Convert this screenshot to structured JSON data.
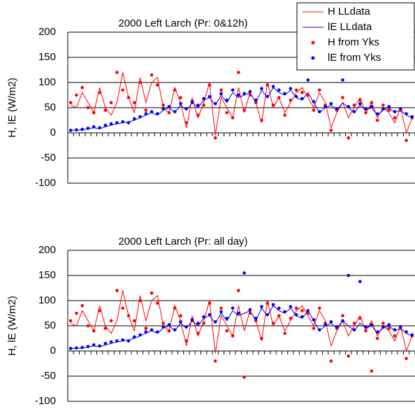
{
  "chart_data": [
    {
      "type": "line",
      "title": "2000 Left Larch    (Pr: 0&12h)",
      "ylabel": "H, lE    (W/m2)",
      "ylim": [
        -100,
        200
      ],
      "yticks": [
        -100,
        -50,
        0,
        50,
        100,
        150,
        200
      ],
      "grid": true,
      "legend": "upper right",
      "categories": [
        null,
        null,
        null,
        null,
        null,
        null,
        null,
        null,
        null,
        null,
        null,
        null,
        null,
        null,
        null,
        null,
        null,
        null,
        null,
        null,
        null,
        null,
        null,
        null,
        null,
        null,
        null,
        null,
        null,
        null,
        null,
        null,
        null,
        null,
        null,
        null,
        null,
        null,
        null,
        null,
        null,
        null,
        null,
        null,
        null,
        null,
        null,
        null,
        null,
        null,
        null,
        null,
        null,
        null,
        null,
        null,
        null,
        null,
        null,
        null
      ],
      "series": [
        {
          "name": "H LLdata",
          "color": "#ff0000",
          "mode": "line",
          "values": [
            55,
            50,
            80,
            60,
            40,
            90,
            50,
            35,
            60,
            120,
            70,
            40,
            110,
            60,
            100,
            110,
            50,
            40,
            90,
            60,
            10,
            70,
            30,
            60,
            100,
            -5,
            70,
            50,
            30,
            90,
            40,
            80,
            60,
            20,
            100,
            50,
            70,
            40,
            60,
            80,
            90,
            70,
            50,
            80,
            60,
            10,
            40,
            60,
            30,
            50,
            70,
            40,
            60,
            30,
            50,
            40,
            20,
            50,
            0,
            30
          ]
        },
        {
          "name": "lE LLdata",
          "color": "#0000cc",
          "mode": "line",
          "values": [
            5,
            5,
            6,
            8,
            10,
            8,
            12,
            15,
            18,
            20,
            22,
            25,
            30,
            35,
            40,
            35,
            45,
            50,
            40,
            55,
            45,
            60,
            50,
            65,
            70,
            55,
            75,
            60,
            80,
            70,
            75,
            80,
            60,
            85,
            70,
            90,
            80,
            75,
            85,
            70,
            65,
            80,
            60,
            40,
            50,
            55,
            45,
            60,
            50,
            40,
            55,
            45,
            50,
            35,
            45,
            50,
            40,
            45,
            35,
            30
          ]
        },
        {
          "name": "H from Yks",
          "color": "#ff0000",
          "mode": "markers",
          "values": [
            60,
            75,
            90,
            50,
            40,
            80,
            45,
            60,
            120,
            85,
            70,
            60,
            100,
            45,
            115,
            95,
            55,
            40,
            85,
            70,
            20,
            60,
            35,
            55,
            95,
            -10,
            85,
            40,
            30,
            120,
            45,
            75,
            60,
            25,
            95,
            55,
            70,
            35,
            65,
            85,
            80,
            75,
            45,
            85,
            55,
            5,
            45,
            70,
            -10,
            55,
            65,
            40,
            60,
            25,
            55,
            45,
            30,
            45,
            -15,
            30
          ]
        },
        {
          "name": "lE from Yks",
          "color": "#0000ff",
          "mode": "markers",
          "values": [
            5,
            6,
            7,
            9,
            12,
            10,
            15,
            18,
            20,
            22,
            20,
            28,
            32,
            38,
            42,
            38,
            48,
            52,
            42,
            58,
            48,
            62,
            55,
            68,
            72,
            58,
            78,
            65,
            85,
            75,
            78,
            82,
            65,
            88,
            72,
            92,
            85,
            78,
            88,
            72,
            68,
            105,
            62,
            42,
            52,
            58,
            48,
            105,
            52,
            42,
            58,
            48,
            52,
            38,
            48,
            52,
            42,
            48,
            38,
            32
          ]
        }
      ]
    },
    {
      "type": "line",
      "title": "2000 Left Larch  (Pr: all day)",
      "ylabel": "H, lE    (W/m2)",
      "ylim": [
        -100,
        200
      ],
      "yticks": [
        -100,
        -50,
        0,
        50,
        100,
        150,
        200
      ],
      "grid": true,
      "categories": [
        null,
        null,
        null,
        null,
        null,
        null,
        null,
        null,
        null,
        null,
        null,
        null,
        null,
        null,
        null,
        null,
        null,
        null,
        null,
        null,
        null,
        null,
        null,
        null,
        null,
        null,
        null,
        null,
        null,
        null,
        null,
        null,
        null,
        null,
        null,
        null,
        null,
        null,
        null,
        null,
        null,
        null,
        null,
        null,
        null,
        null,
        null,
        null,
        null,
        null,
        null,
        null,
        null,
        null,
        null,
        null,
        null,
        null,
        null,
        null
      ],
      "series": [
        {
          "name": "H LLdata",
          "color": "#ff0000",
          "mode": "line",
          "values": [
            55,
            50,
            80,
            60,
            40,
            90,
            50,
            35,
            60,
            120,
            70,
            40,
            110,
            60,
            100,
            110,
            50,
            40,
            90,
            60,
            10,
            70,
            30,
            60,
            100,
            -5,
            70,
            50,
            30,
            90,
            40,
            80,
            60,
            20,
            100,
            50,
            70,
            40,
            60,
            80,
            90,
            70,
            50,
            80,
            60,
            10,
            40,
            60,
            30,
            50,
            70,
            40,
            60,
            30,
            50,
            40,
            20,
            50,
            0,
            30
          ]
        },
        {
          "name": "lE LLdata",
          "color": "#0000cc",
          "mode": "line",
          "values": [
            5,
            5,
            6,
            8,
            10,
            8,
            12,
            15,
            18,
            20,
            22,
            25,
            30,
            35,
            40,
            35,
            45,
            50,
            40,
            55,
            45,
            60,
            50,
            65,
            70,
            55,
            75,
            60,
            80,
            70,
            75,
            80,
            60,
            85,
            70,
            90,
            80,
            75,
            85,
            70,
            65,
            80,
            60,
            40,
            50,
            55,
            45,
            60,
            50,
            40,
            55,
            45,
            50,
            35,
            45,
            50,
            40,
            45,
            35,
            30
          ]
        },
        {
          "name": "H from Yks",
          "color": "#ff0000",
          "mode": "markers",
          "values": [
            60,
            75,
            90,
            50,
            40,
            80,
            45,
            60,
            120,
            85,
            70,
            60,
            100,
            45,
            115,
            95,
            55,
            40,
            85,
            70,
            20,
            60,
            35,
            55,
            95,
            -20,
            85,
            40,
            30,
            120,
            -52,
            75,
            60,
            25,
            95,
            55,
            70,
            35,
            65,
            85,
            80,
            75,
            45,
            85,
            55,
            -20,
            45,
            70,
            -10,
            55,
            65,
            40,
            -40,
            25,
            55,
            45,
            30,
            45,
            -15,
            30
          ]
        },
        {
          "name": "lE from Yks",
          "color": "#0000ff",
          "mode": "markers",
          "values": [
            5,
            6,
            7,
            9,
            12,
            10,
            15,
            18,
            20,
            22,
            20,
            28,
            32,
            38,
            42,
            38,
            48,
            52,
            42,
            58,
            48,
            62,
            55,
            68,
            72,
            58,
            78,
            65,
            85,
            75,
            155,
            82,
            65,
            88,
            72,
            92,
            85,
            78,
            88,
            72,
            68,
            80,
            62,
            42,
            52,
            58,
            48,
            60,
            150,
            42,
            138,
            48,
            52,
            38,
            48,
            52,
            42,
            48,
            38,
            32
          ]
        }
      ]
    }
  ]
}
